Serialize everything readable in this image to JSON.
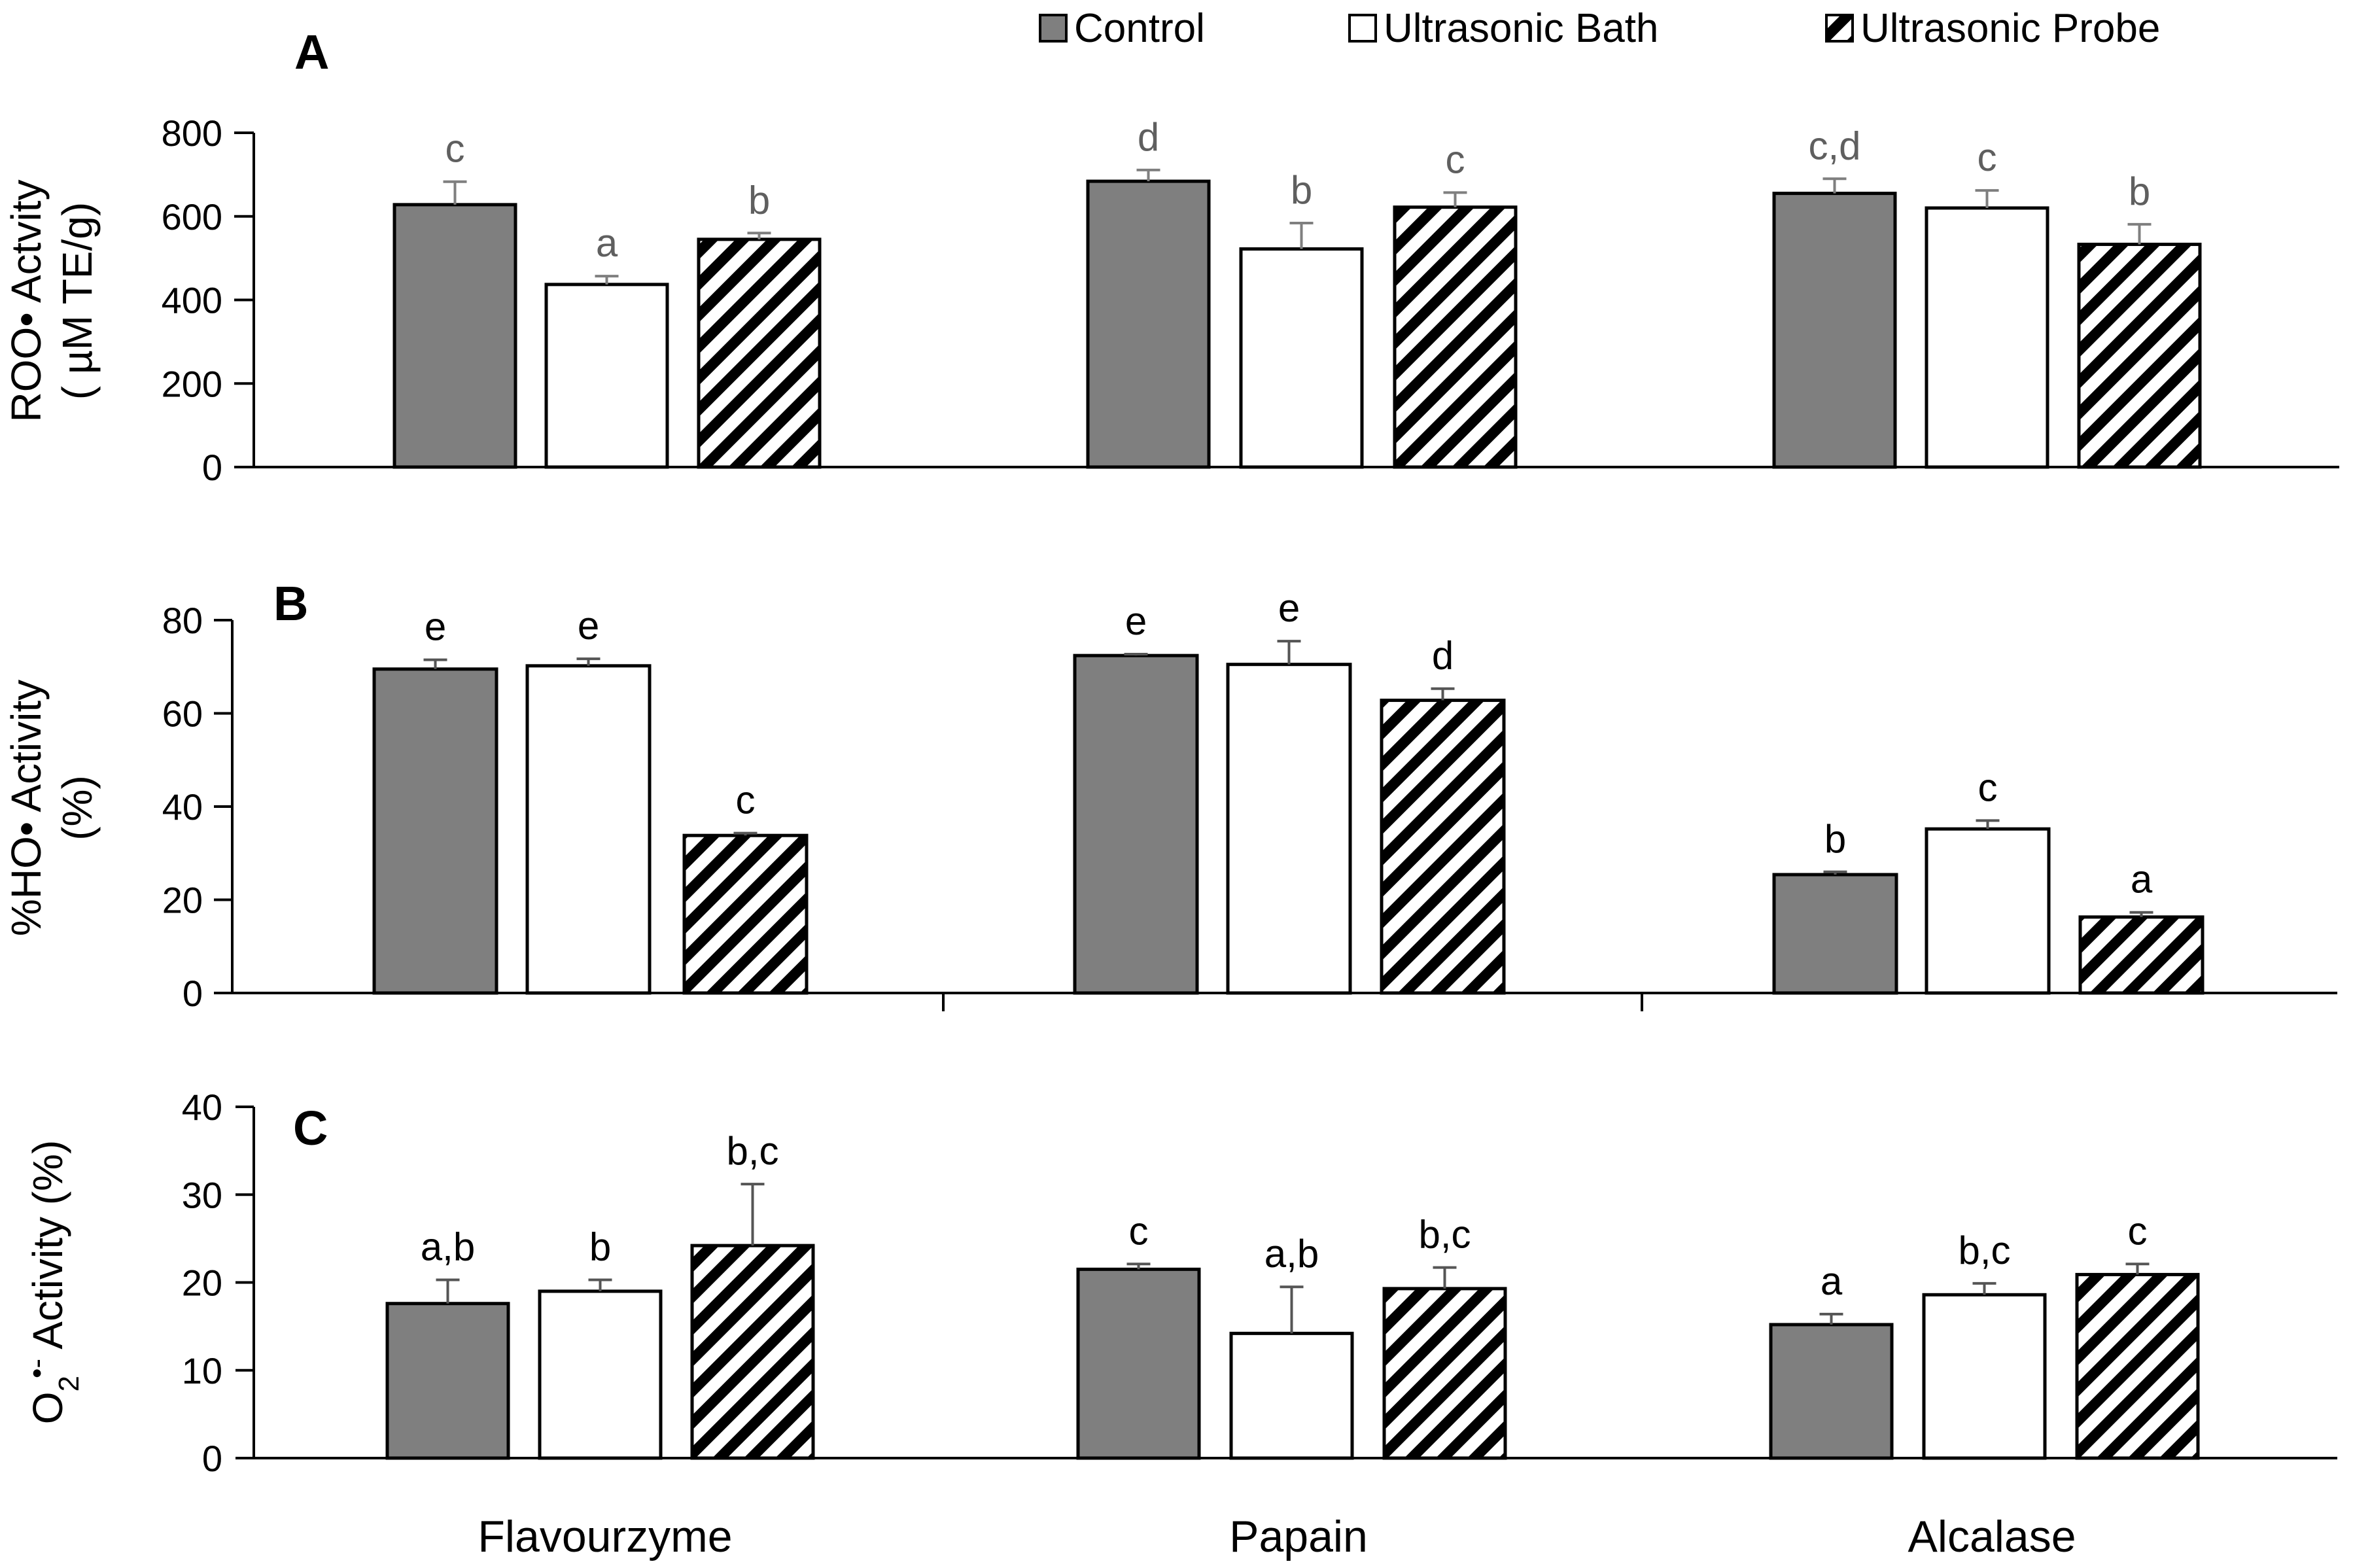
{
  "legend": {
    "items": [
      {
        "label": "Control",
        "style": "control"
      },
      {
        "label": "Ultrasonic Bath",
        "style": "bath"
      },
      {
        "label": "Ultrasonic Probe",
        "style": "probe"
      }
    ]
  },
  "colors": {
    "control_fill": "#7f7f7f",
    "bath_fill": "#ffffff",
    "stroke": "#000000",
    "error_bar_a": "#7f7f7f",
    "error_bar_bc": "#555555",
    "letter_a": "#5f5f5f",
    "letter_bc": "#000000"
  },
  "chart_data": [
    {
      "type": "bar",
      "panel_label": "A",
      "title": "",
      "xlabel": "",
      "ylabel_lines": [
        "ROO• Actvity",
        "( µM TE/g)"
      ],
      "categories": [
        "Flavourzyme",
        "Papain",
        "Alcalase"
      ],
      "ylim": [
        0,
        800
      ],
      "yticks": [
        0,
        200,
        400,
        600,
        800
      ],
      "series": [
        {
          "name": "Control",
          "values": [
            628,
            684,
            655
          ],
          "errors": [
            55,
            27,
            35
          ],
          "letters": [
            "c",
            "d",
            "c,d"
          ]
        },
        {
          "name": "Ultrasonic Bath",
          "values": [
            437,
            522,
            620
          ],
          "errors": [
            20,
            62,
            42
          ],
          "letters": [
            "a",
            "b",
            "c"
          ]
        },
        {
          "name": "Ultrasonic Probe",
          "values": [
            545,
            622,
            533
          ],
          "errors": [
            15,
            35,
            48
          ],
          "letters": [
            "b",
            "c",
            "b"
          ]
        }
      ]
    },
    {
      "type": "bar",
      "panel_label": "B",
      "title": "",
      "xlabel": "",
      "ylabel_lines": [
        "%HO• Activity",
        "(%)"
      ],
      "categories": [
        "Flavourzyme",
        "Papain",
        "Alcalase"
      ],
      "ylim": [
        0,
        80
      ],
      "yticks": [
        0,
        20,
        40,
        60,
        80
      ],
      "series": [
        {
          "name": "Control",
          "values": [
            69.5,
            72.4,
            25.4
          ],
          "errors": [
            2.0,
            0.3,
            0.6
          ],
          "letters": [
            "e",
            "e",
            "b"
          ]
        },
        {
          "name": "Ultrasonic Bath",
          "values": [
            70.2,
            70.5,
            35.2
          ],
          "errors": [
            1.5,
            5.0,
            1.8
          ],
          "letters": [
            "e",
            "e",
            "c"
          ]
        },
        {
          "name": "Ultrasonic Probe",
          "values": [
            33.8,
            62.8,
            16.3
          ],
          "errors": [
            0.5,
            2.5,
            1.0
          ],
          "letters": [
            "c",
            "d",
            "a"
          ]
        }
      ]
    },
    {
      "type": "bar",
      "panel_label": "C",
      "title": "",
      "ylabel_main": "O",
      "ylabel_sub": "2",
      "ylabel_sup": "•-",
      "ylabel_rest": " Activity (%)",
      "categories": [
        "Flavourzyme",
        "Papain",
        "Alcalase"
      ],
      "xlabel": "",
      "ylim": [
        0,
        40
      ],
      "yticks": [
        0,
        10,
        20,
        30,
        40
      ],
      "series": [
        {
          "name": "Control",
          "values": [
            17.6,
            21.5,
            15.2
          ],
          "errors": [
            2.7,
            0.6,
            1.2
          ],
          "letters": [
            "a,b",
            "c",
            "a"
          ]
        },
        {
          "name": "Ultrasonic Bath",
          "values": [
            19.0,
            14.2,
            18.6
          ],
          "errors": [
            1.3,
            5.3,
            1.3
          ],
          "letters": [
            "b",
            "a,b",
            "b,c"
          ]
        },
        {
          "name": "Ultrasonic Probe",
          "values": [
            24.2,
            19.3,
            20.9
          ],
          "errors": [
            7.0,
            2.4,
            1.2
          ],
          "letters": [
            "b,c",
            "b,c",
            "c"
          ]
        }
      ]
    }
  ]
}
